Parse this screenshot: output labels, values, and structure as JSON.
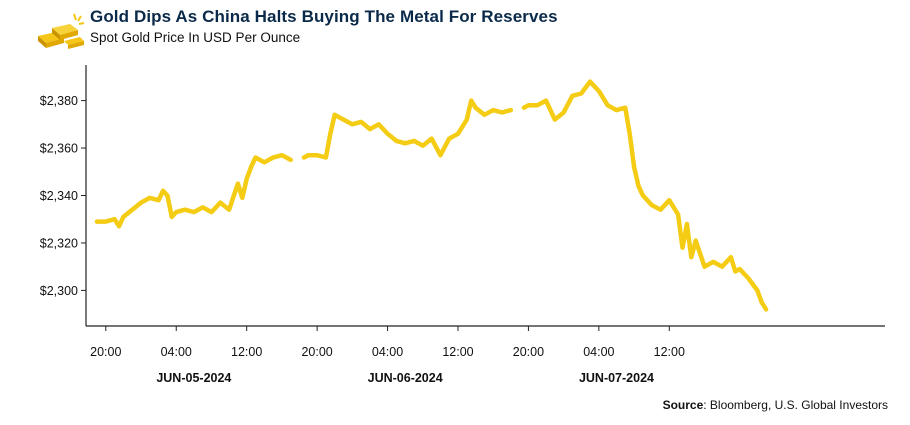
{
  "header": {
    "title": "Gold Dips As China Halts Buying The Metal For Reserves",
    "subtitle": "Spot Gold Price In USD Per Ounce"
  },
  "source": {
    "label": "Source",
    "text": ": Bloomberg, U.S. Global Investors"
  },
  "colors": {
    "line": "#f5cc14",
    "title": "#0b2a4a",
    "axis": "#222222",
    "logo_gold": "#f5c518"
  },
  "icons": {
    "logo": "gold-bars-icon"
  },
  "chart_data": {
    "type": "line",
    "title": "Gold Dips As China Halts Buying The Metal For Reserves",
    "subtitle": "Spot Gold Price In USD Per Ounce",
    "xlabel": "",
    "ylabel": "",
    "grid": false,
    "legend": "none",
    "x_unit": "hours (time axis; labels every 8 hours)",
    "xlim": [
      -2.25,
      88.5
    ],
    "ylim": [
      2285,
      2395
    ],
    "y_ticks": [
      2300,
      2320,
      2340,
      2360,
      2380
    ],
    "y_tick_labels": [
      "$2,300",
      "$2,320",
      "$2,340",
      "$2,360",
      "$2,380"
    ],
    "x_ticks": [
      0,
      8,
      16,
      24,
      32,
      40,
      48,
      56,
      64
    ],
    "x_tick_labels": [
      "20:00",
      "04:00",
      "12:00",
      "20:00",
      "04:00",
      "12:00",
      "20:00",
      "04:00",
      "12:00"
    ],
    "date_labels": [
      {
        "x": 10,
        "label": "JUN-05-2024"
      },
      {
        "x": 34,
        "label": "JUN-06-2024"
      },
      {
        "x": 58,
        "label": "JUN-07-2024"
      }
    ],
    "series": [
      {
        "segments": [
          [
            [
              -1,
              2329
            ],
            [
              0,
              2329
            ],
            [
              1,
              2330
            ],
            [
              1.5,
              2327
            ],
            [
              2,
              2331
            ],
            [
              3,
              2334
            ],
            [
              4,
              2337
            ],
            [
              5,
              2339
            ],
            [
              6,
              2338
            ],
            [
              6.5,
              2342
            ],
            [
              7,
              2340
            ],
            [
              7.5,
              2331
            ],
            [
              8,
              2333
            ],
            [
              9,
              2334
            ],
            [
              10,
              2333
            ],
            [
              11,
              2335
            ],
            [
              12,
              2333
            ],
            [
              13,
              2337
            ],
            [
              14,
              2334
            ],
            [
              15,
              2345
            ],
            [
              15.5,
              2339
            ],
            [
              16,
              2347
            ],
            [
              16.5,
              2352
            ],
            [
              17,
              2356
            ],
            [
              18,
              2354
            ],
            [
              19,
              2356
            ],
            [
              20,
              2357
            ],
            [
              21,
              2355
            ]
          ],
          [
            [
              22.5,
              2356
            ],
            [
              23,
              2357
            ],
            [
              24,
              2357
            ],
            [
              25,
              2356
            ],
            [
              25.5,
              2366
            ],
            [
              26,
              2374
            ],
            [
              27,
              2372
            ],
            [
              28,
              2370
            ],
            [
              29,
              2371
            ],
            [
              30,
              2368
            ],
            [
              31,
              2370
            ],
            [
              32,
              2366
            ],
            [
              33,
              2363
            ],
            [
              34,
              2362
            ],
            [
              35,
              2363
            ],
            [
              36,
              2361
            ],
            [
              37,
              2364
            ],
            [
              38,
              2357
            ],
            [
              39,
              2364
            ],
            [
              40,
              2366
            ],
            [
              41,
              2372
            ],
            [
              41.5,
              2380
            ],
            [
              42,
              2377
            ],
            [
              43,
              2374
            ],
            [
              44,
              2376
            ],
            [
              45,
              2375
            ],
            [
              46,
              2376
            ]
          ],
          [
            [
              47.5,
              2377
            ],
            [
              48,
              2378
            ],
            [
              49,
              2378
            ],
            [
              50,
              2380
            ],
            [
              51,
              2372
            ],
            [
              52,
              2375
            ],
            [
              53,
              2382
            ],
            [
              54,
              2383
            ],
            [
              55,
              2388
            ],
            [
              56,
              2384
            ],
            [
              57,
              2378
            ],
            [
              58,
              2376
            ],
            [
              59,
              2377
            ],
            [
              59.5,
              2366
            ],
            [
              60,
              2352
            ],
            [
              60.5,
              2344
            ],
            [
              61,
              2340
            ],
            [
              62,
              2336
            ],
            [
              63,
              2334
            ],
            [
              64,
              2338
            ],
            [
              65,
              2332
            ],
            [
              65.5,
              2318
            ],
            [
              66,
              2328
            ],
            [
              66.5,
              2314
            ],
            [
              67,
              2321
            ],
            [
              68,
              2310
            ],
            [
              69,
              2312
            ],
            [
              70,
              2310
            ],
            [
              71,
              2314
            ],
            [
              71.5,
              2308
            ],
            [
              72,
              2309
            ],
            [
              73,
              2305
            ],
            [
              74,
              2300
            ],
            [
              74.5,
              2295
            ],
            [
              75,
              2292
            ]
          ]
        ]
      }
    ]
  }
}
